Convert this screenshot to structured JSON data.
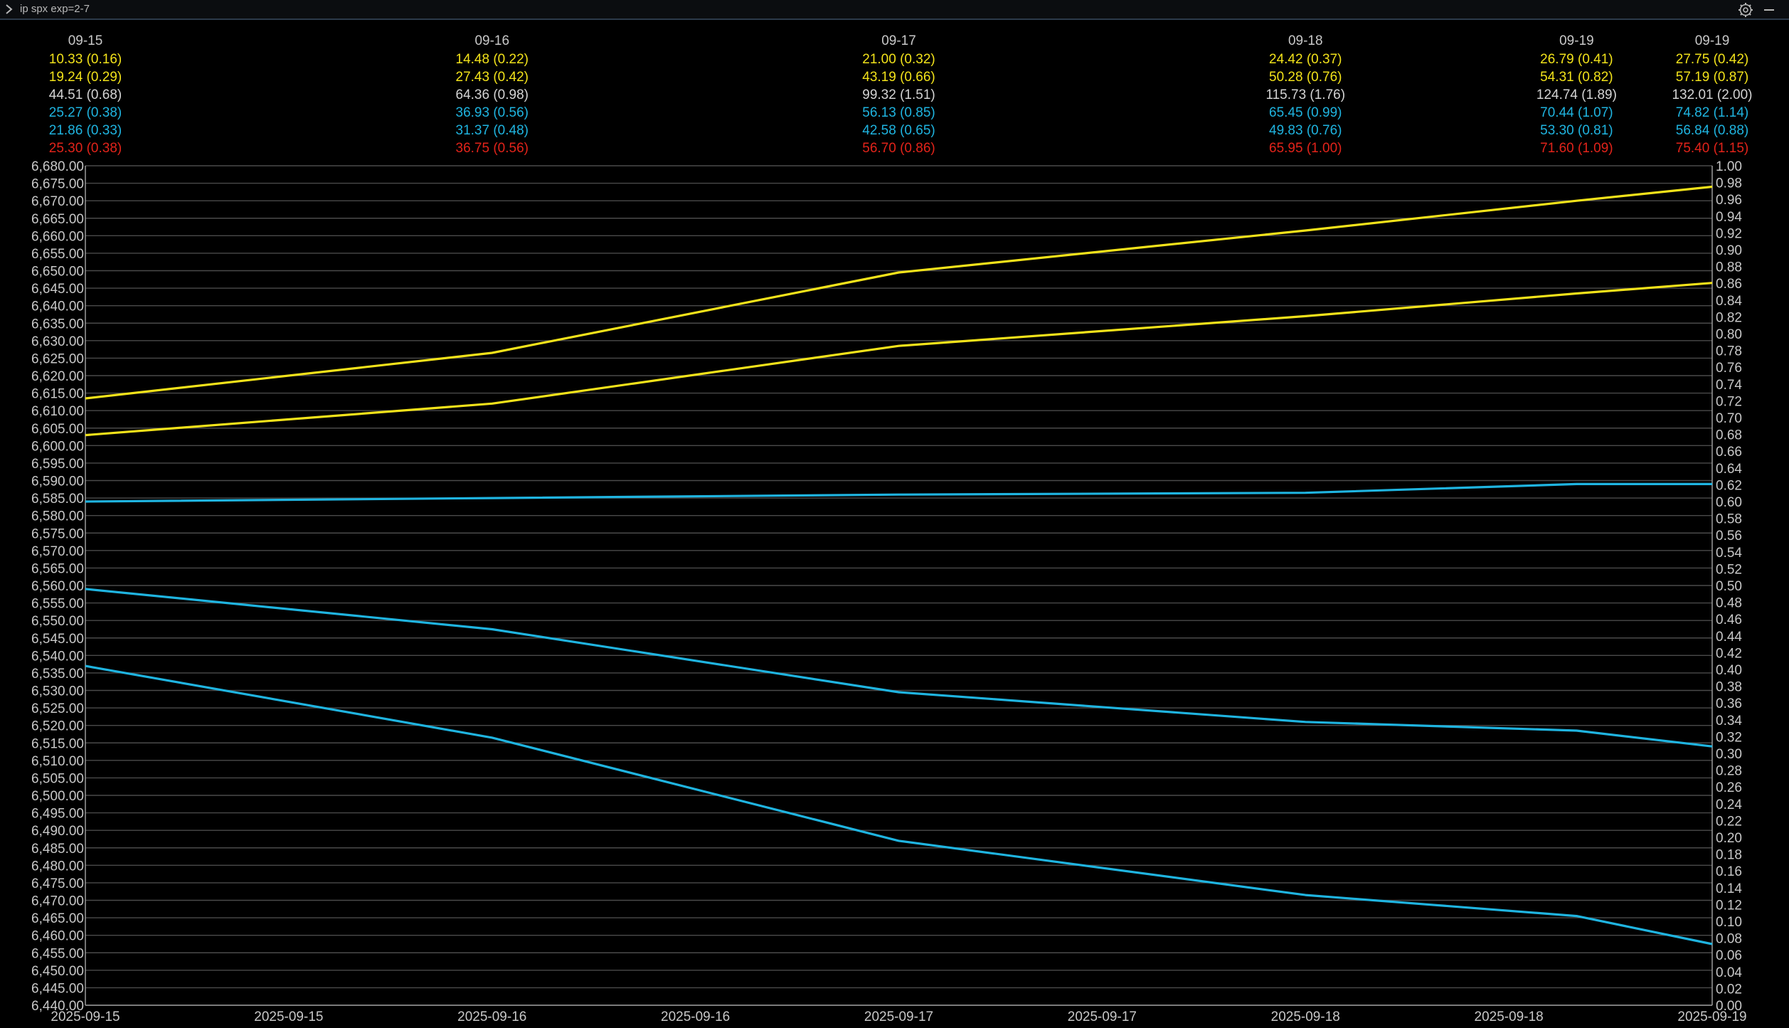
{
  "window": {
    "title": "ip spx exp=2-7"
  },
  "colors": {
    "background": "#000000",
    "grid": "#4a4a4a",
    "text": "#c8c8c8",
    "yellow": "#f2e21a",
    "white": "#d4d4d4",
    "cyan": "#1fb4e0",
    "red": "#e2231a"
  },
  "icons": {
    "menu": "chevron-right-icon",
    "settings": "gear-icon",
    "minimize": "minimize-icon"
  },
  "header": {
    "columns": [
      {
        "x": "2025-09-15 00:00",
        "date": "09-15",
        "rows": [
          "10.33 (0.16)",
          "19.24 (0.29)",
          "44.51 (0.68)",
          "25.27 (0.38)",
          "21.86 (0.33)",
          "25.30 (0.38)"
        ]
      },
      {
        "x": "2025-09-16 00:00",
        "date": "09-16",
        "rows": [
          "14.48 (0.22)",
          "27.43 (0.42)",
          "64.36 (0.98)",
          "36.93 (0.56)",
          "31.37 (0.48)",
          "36.75 (0.56)"
        ]
      },
      {
        "x": "2025-09-17 00:00",
        "date": "09-17",
        "rows": [
          "21.00 (0.32)",
          "43.19 (0.66)",
          "99.32 (1.51)",
          "56.13 (0.85)",
          "42.58 (0.65)",
          "56.70 (0.86)"
        ]
      },
      {
        "x": "2025-09-18 00:00",
        "date": "09-18",
        "rows": [
          "24.42 (0.37)",
          "50.28 (0.76)",
          "115.73 (1.76)",
          "65.45 (0.99)",
          "49.83 (0.76)",
          "65.95 (1.00)"
        ]
      },
      {
        "x": "2025-09-18 16:00",
        "date": "09-19",
        "rows": [
          "26.79 (0.41)",
          "54.31 (0.82)",
          "124.74 (1.89)",
          "70.44 (1.07)",
          "53.30 (0.81)",
          "71.60 (1.09)"
        ]
      },
      {
        "x": "2025-09-19 00:00",
        "date": "09-19",
        "rows": [
          "27.75 (0.42)",
          "57.19 (0.87)",
          "132.01 (2.00)",
          "74.82 (1.14)",
          "56.84 (0.88)",
          "75.40 (1.15)"
        ]
      }
    ],
    "row_colors": [
      "yellow",
      "yellow",
      "white",
      "cyan",
      "cyan",
      "red"
    ]
  },
  "chart_data": {
    "type": "line",
    "title": "",
    "xlabel": "",
    "ylabel": "",
    "xlim": [
      "2025-09-15 00:00",
      "2025-09-19 00:00"
    ],
    "ylim": [
      6440,
      6680
    ],
    "y_tick_step": 5,
    "ylim_right": [
      0.0,
      1.0
    ],
    "y_right_tick_step": 0.02,
    "grid": true,
    "x_ticks": [
      {
        "x": "2025-09-15 00:00",
        "label": "2025-09-15"
      },
      {
        "x": "2025-09-15 12:00",
        "label": "2025-09-15"
      },
      {
        "x": "2025-09-16 00:00",
        "label": "2025-09-16"
      },
      {
        "x": "2025-09-16 12:00",
        "label": "2025-09-16"
      },
      {
        "x": "2025-09-17 00:00",
        "label": "2025-09-17"
      },
      {
        "x": "2025-09-17 12:00",
        "label": "2025-09-17"
      },
      {
        "x": "2025-09-18 00:00",
        "label": "2025-09-18"
      },
      {
        "x": "2025-09-18 12:00",
        "label": "2025-09-18"
      },
      {
        "x": "2025-09-19 00:00",
        "label": "2025-09-19"
      }
    ],
    "series": [
      {
        "color": "yellow",
        "points": [
          [
            "2025-09-15 00:00",
            6613.5
          ],
          [
            "2025-09-16 00:00",
            6626.5
          ],
          [
            "2025-09-17 00:00",
            6649.5
          ],
          [
            "2025-09-18 00:00",
            6661.5
          ],
          [
            "2025-09-18 16:00",
            6670
          ],
          [
            "2025-09-19 00:00",
            6674
          ]
        ]
      },
      {
        "color": "yellow",
        "points": [
          [
            "2025-09-15 00:00",
            6603
          ],
          [
            "2025-09-16 00:00",
            6612
          ],
          [
            "2025-09-17 00:00",
            6628.5
          ],
          [
            "2025-09-18 00:00",
            6637
          ],
          [
            "2025-09-18 16:00",
            6643.5
          ],
          [
            "2025-09-19 00:00",
            6646.5
          ]
        ]
      },
      {
        "color": "cyan",
        "points": [
          [
            "2025-09-15 00:00",
            6584
          ],
          [
            "2025-09-16 00:00",
            6585
          ],
          [
            "2025-09-17 00:00",
            6586
          ],
          [
            "2025-09-18 00:00",
            6586.5
          ],
          [
            "2025-09-18 16:00",
            6589
          ],
          [
            "2025-09-19 00:00",
            6589
          ]
        ]
      },
      {
        "color": "cyan",
        "points": [
          [
            "2025-09-15 00:00",
            6559
          ],
          [
            "2025-09-16 00:00",
            6547.5
          ],
          [
            "2025-09-17 00:00",
            6529.5
          ],
          [
            "2025-09-18 00:00",
            6521
          ],
          [
            "2025-09-18 16:00",
            6518.5
          ],
          [
            "2025-09-19 00:00",
            6514
          ]
        ]
      },
      {
        "color": "cyan",
        "points": [
          [
            "2025-09-15 00:00",
            6537
          ],
          [
            "2025-09-16 00:00",
            6516.5
          ],
          [
            "2025-09-17 00:00",
            6487
          ],
          [
            "2025-09-18 00:00",
            6471.5
          ],
          [
            "2025-09-18 16:00",
            6465.5
          ],
          [
            "2025-09-19 00:00",
            6457.5
          ]
        ]
      }
    ]
  }
}
